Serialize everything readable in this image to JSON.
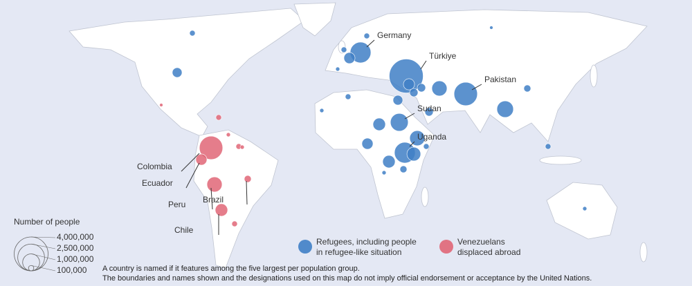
{
  "chart_data": {
    "type": "bubble-map",
    "series": [
      {
        "name": "Refugees, including people in refugee-like situation",
        "color": "#3f7fc6",
        "labels": [
          "Türkiye",
          "Germany",
          "Pakistan",
          "Sudan",
          "Uganda",
          null,
          null,
          null,
          null,
          null,
          null,
          null,
          null,
          null,
          null,
          null,
          null,
          null,
          null,
          null,
          null,
          null,
          null,
          null,
          null,
          null,
          null,
          null,
          null,
          null,
          null,
          null
        ],
        "values": [
          4000000,
          1500000,
          1900000,
          1100000,
          1500000,
          800000,
          800000,
          950000,
          540000,
          540000,
          430000,
          330000,
          430000,
          660000,
          430000,
          240000,
          330000,
          110000,
          170000,
          170000,
          240000,
          110000,
          240000,
          110000,
          110000,
          60000,
          60000,
          110000,
          40000,
          110000,
          60000,
          60000
        ]
      },
      {
        "name": "Venezuelans displaced abroad",
        "color": "#e06677",
        "labels": [
          "Colombia",
          "Ecuador",
          "Peru",
          "Brazil",
          "Chile",
          null,
          null,
          null,
          null,
          null,
          null
        ],
        "values": [
          1900000,
          430000,
          800000,
          170000,
          540000,
          110000,
          110000,
          110000,
          60000,
          60000,
          40000
        ]
      }
    ],
    "size_legend": {
      "title": "Number of people",
      "values": [
        {
          "value": 4000000,
          "label": "4,000,000"
        },
        {
          "value": 2500000,
          "label": "2,500,000"
        },
        {
          "value": 1000000,
          "label": "1,000,000"
        },
        {
          "value": 100000,
          "label": "100,000"
        }
      ]
    },
    "notes": [
      "A country is named if it features among the five largest per population group.",
      "The boundaries and names shown and the designations used on this map do not imply official endorsement or acceptance by the United Nations."
    ]
  }
}
